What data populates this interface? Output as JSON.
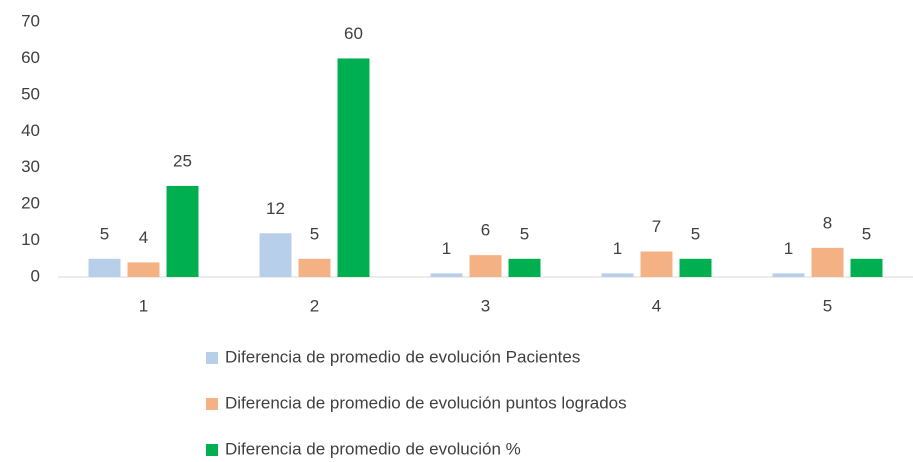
{
  "chart_data": {
    "type": "bar",
    "categories": [
      "1",
      "2",
      "3",
      "4",
      "5"
    ],
    "series": [
      {
        "name": "Diferencia de promedio de evolución Pacientes",
        "color": "#b8cfea",
        "values": [
          5,
          12,
          1,
          1,
          1
        ]
      },
      {
        "name": "Diferencia de promedio de evolución puntos logrados",
        "color": "#f4b183",
        "values": [
          4,
          5,
          6,
          7,
          8
        ]
      },
      {
        "name": "Diferencia de promedio de evolución %",
        "color": "#00b050",
        "values": [
          25,
          60,
          5,
          5,
          5
        ]
      }
    ],
    "ylim": [
      0,
      70
    ],
    "yticks": [
      0,
      10,
      20,
      30,
      40,
      50,
      60,
      70
    ],
    "grid": false,
    "legend": "bottom"
  }
}
